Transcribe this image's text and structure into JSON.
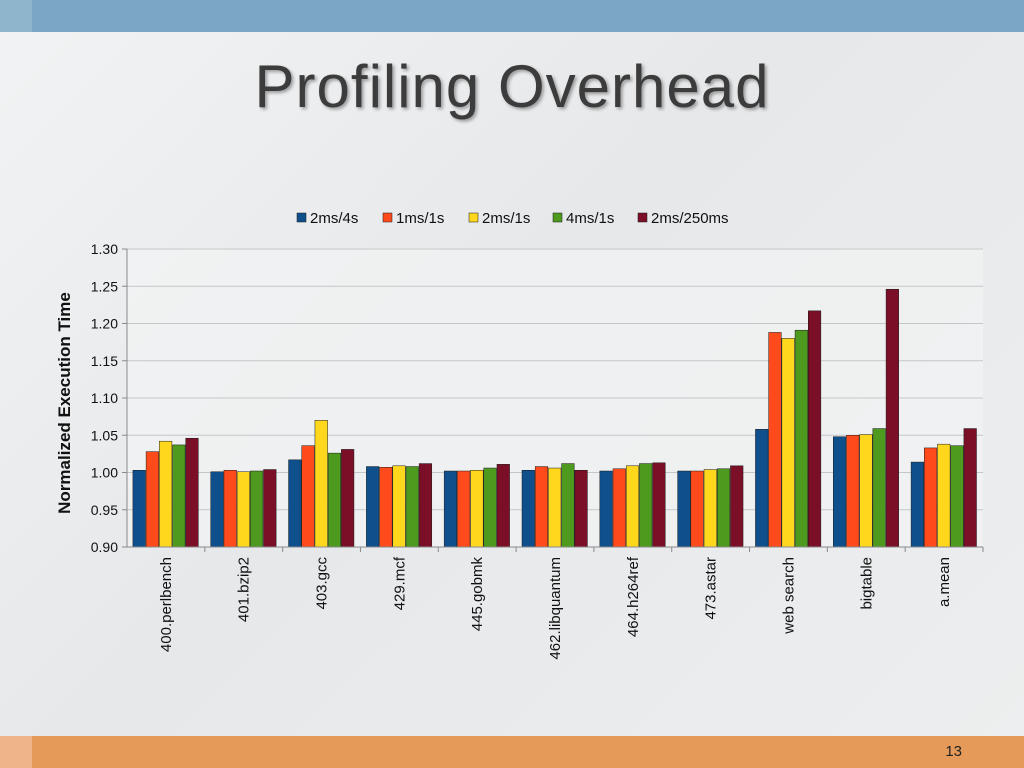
{
  "slide": {
    "title": "Profiling Overhead",
    "page_number": "13"
  },
  "chart_data": {
    "type": "bar",
    "title": "",
    "xlabel": "",
    "ylabel": "Normalized Execution Time",
    "ylim": [
      0.9,
      1.3
    ],
    "yticks": [
      "0.90",
      "0.95",
      "1.00",
      "1.05",
      "1.10",
      "1.15",
      "1.20",
      "1.25",
      "1.30"
    ],
    "grid": true,
    "legend_position": "top-center",
    "categories": [
      "400.perlbench",
      "401.bzip2",
      "403.gcc",
      "429.mcf",
      "445.gobmk",
      "462.libquantum",
      "464.h264ref",
      "473.astar",
      "web search",
      "bigtable",
      "a.mean"
    ],
    "series": [
      {
        "name": "2ms/4s",
        "color": "#0f4f8c",
        "values": [
          1.003,
          1.001,
          1.017,
          1.008,
          1.002,
          1.003,
          1.002,
          1.002,
          1.058,
          1.048,
          1.014
        ]
      },
      {
        "name": "1ms/1s",
        "color": "#ff4a1c",
        "values": [
          1.028,
          1.003,
          1.036,
          1.007,
          1.002,
          1.008,
          1.005,
          1.002,
          1.188,
          1.05,
          1.033
        ]
      },
      {
        "name": "2ms/1s",
        "color": "#ffd81e",
        "values": [
          1.042,
          1.001,
          1.07,
          1.009,
          1.003,
          1.006,
          1.009,
          1.004,
          1.18,
          1.051,
          1.038
        ]
      },
      {
        "name": "4ms/1s",
        "color": "#4e9a1f",
        "values": [
          1.037,
          1.002,
          1.026,
          1.008,
          1.006,
          1.012,
          1.012,
          1.005,
          1.191,
          1.059,
          1.036
        ]
      },
      {
        "name": "2ms/250ms",
        "color": "#7a0f27",
        "values": [
          1.046,
          1.004,
          1.031,
          1.012,
          1.011,
          1.003,
          1.013,
          1.009,
          1.217,
          1.246,
          1.059
        ]
      }
    ]
  }
}
